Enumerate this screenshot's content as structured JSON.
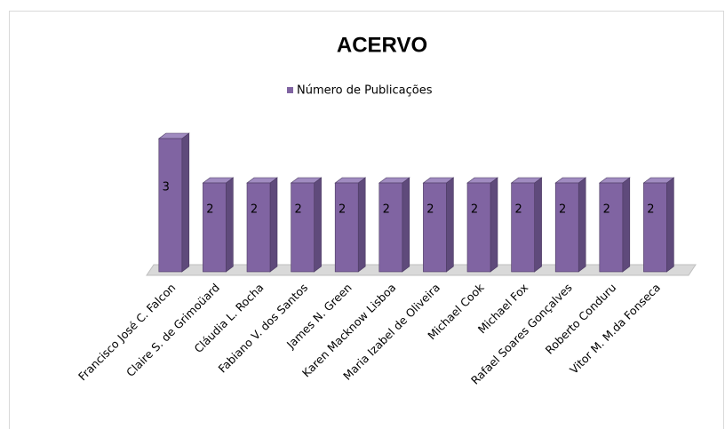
{
  "chart_data": {
    "type": "bar3d",
    "title": "ACERVO",
    "series": [
      {
        "name": "Número de Publicações",
        "color": "#8064a2",
        "values": [
          3,
          2,
          2,
          2,
          2,
          2,
          2,
          2,
          2,
          2,
          2,
          2
        ]
      }
    ],
    "categories": [
      "Francisco José C. Falcon",
      "Claire S. de Grimoüard",
      "Cláudia L. Rocha",
      "Fabiano V. dos Santos",
      "James N. Green",
      "Karen Macknow Lisboa",
      "Maria Izabel de Oliveira",
      "Michael Cook",
      "Michael Fox",
      "Rafael Soares Gonçalves",
      "Roberto Conduru",
      "Vitor M. M.da Fonseca"
    ],
    "legend": "top"
  }
}
